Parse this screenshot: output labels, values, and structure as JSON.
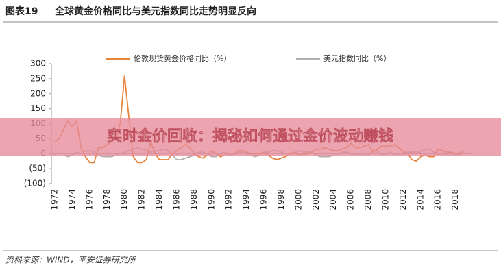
{
  "chart_data": {
    "type": "line",
    "figure_label": "图表19",
    "title": "全球黄金价格同比与美元指数同比走势明显反向",
    "source": "资料来源：WIND，平安证券研究所",
    "x": [
      1972,
      1972.5,
      1973,
      1973.5,
      1974,
      1974.5,
      1975,
      1975.5,
      1976,
      1976.5,
      1977,
      1977.5,
      1978,
      1978.5,
      1979,
      1979.5,
      1980,
      1980.5,
      1981,
      1981.5,
      1982,
      1982.5,
      1983,
      1983.5,
      1984,
      1984.5,
      1985,
      1985.5,
      1986,
      1986.5,
      1987,
      1987.5,
      1988,
      1988.5,
      1989,
      1989.5,
      1990,
      1990.5,
      1991,
      1991.5,
      1992,
      1992.5,
      1993,
      1993.5,
      1994,
      1994.5,
      1995,
      1995.5,
      1996,
      1996.5,
      1997,
      1997.5,
      1998,
      1998.5,
      1999,
      1999.5,
      2000,
      2000.5,
      2001,
      2001.5,
      2002,
      2002.5,
      2003,
      2003.5,
      2004,
      2004.5,
      2005,
      2005.5,
      2006,
      2006.5,
      2007,
      2007.5,
      2008,
      2008.5,
      2009,
      2009.5,
      2010,
      2010.5,
      2011,
      2011.5,
      2012,
      2012.5,
      2013,
      2013.5,
      2014,
      2014.5,
      2015,
      2015.5,
      2016,
      2016.5,
      2017,
      2017.5,
      2018,
      2018.5,
      2019
    ],
    "series": [
      {
        "name": "伦敦现货黄金价格同比（%）",
        "color": "#e8833a",
        "values": [
          40,
          50,
          80,
          110,
          90,
          110,
          20,
          -10,
          -30,
          -30,
          20,
          20,
          30,
          40,
          50,
          100,
          260,
          120,
          -10,
          -30,
          -30,
          -20,
          40,
          0,
          -20,
          -20,
          -20,
          0,
          10,
          20,
          30,
          20,
          0,
          -10,
          -15,
          -5,
          10,
          0,
          -10,
          -5,
          -5,
          -5,
          10,
          10,
          5,
          0,
          0,
          0,
          5,
          -5,
          -15,
          -20,
          -15,
          -10,
          0,
          5,
          -5,
          -5,
          0,
          5,
          15,
          15,
          20,
          15,
          10,
          10,
          15,
          20,
          35,
          20,
          20,
          25,
          30,
          5,
          15,
          25,
          25,
          25,
          30,
          20,
          5,
          0,
          -20,
          -25,
          -10,
          -5,
          -10,
          -10,
          15,
          10,
          5,
          5,
          0,
          -5,
          10
        ]
      },
      {
        "name": "美元指数同比（%）",
        "color": "#b0b0b0",
        "values": [
          null,
          null,
          -5,
          -10,
          -5,
          5,
          0,
          10,
          10,
          5,
          -5,
          -10,
          -10,
          -10,
          -5,
          0,
          5,
          10,
          15,
          20,
          15,
          10,
          5,
          10,
          10,
          15,
          10,
          -5,
          -20,
          -20,
          -15,
          -10,
          -5,
          5,
          5,
          0,
          -10,
          -10,
          0,
          5,
          -5,
          -5,
          5,
          5,
          0,
          -5,
          -10,
          -5,
          5,
          5,
          10,
          10,
          5,
          0,
          0,
          0,
          10,
          5,
          5,
          5,
          -5,
          -10,
          -10,
          -10,
          -5,
          -5,
          5,
          5,
          0,
          -5,
          -5,
          -5,
          -5,
          10,
          10,
          -5,
          0,
          5,
          -5,
          -5,
          5,
          5,
          5,
          5,
          5,
          15,
          15,
          5,
          0,
          0,
          -5,
          -5,
          -5,
          5,
          0
        ]
      }
    ],
    "legend_position": "top",
    "xlim": [
      1971.6,
      2020
    ],
    "xticks": [
      1972,
      1974,
      1976,
      1978,
      1980,
      1982,
      1984,
      1986,
      1988,
      1990,
      1992,
      1994,
      1996,
      1998,
      2000,
      2002,
      2004,
      2006,
      2008,
      2010,
      2012,
      2014,
      2016,
      2018
    ],
    "ylim": [
      -100,
      300
    ],
    "yticks": [
      {
        "value": -100,
        "label": "(100)"
      },
      {
        "value": -50,
        "label": "(50)"
      },
      0,
      50,
      100,
      150,
      200,
      250,
      300
    ],
    "grid": false
  },
  "banner": {
    "text": "实时金价回收：揭秘如何通过金价波动赚钱"
  }
}
